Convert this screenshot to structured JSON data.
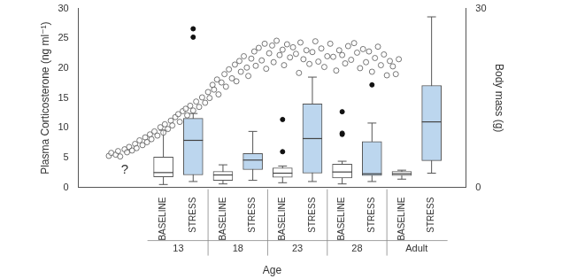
{
  "chart_data": {
    "type": "box",
    "y_label": "Plasma Corticosterone (ng ml⁻¹)",
    "y2_label": "Body mass (g)",
    "x_label": "Age",
    "xlim": [
      -1.2,
      10.5
    ],
    "xticks": [
      {
        "value": 1,
        "label": "BASELINE"
      },
      {
        "value": 2,
        "label": "STRESS"
      },
      {
        "value": 3,
        "label": "BASELINE"
      },
      {
        "value": 4,
        "label": "STRESS"
      },
      {
        "value": 5,
        "label": "BASELINE"
      },
      {
        "value": 6,
        "label": "STRESS"
      },
      {
        "value": 7,
        "label": "BASELINE"
      },
      {
        "value": 8,
        "label": "STRESS"
      },
      {
        "value": 9,
        "label": "BASELINE"
      },
      {
        "value": 10,
        "label": "STRESS"
      }
    ],
    "groups": [
      "13",
      "18",
      "23",
      "28",
      "Adult"
    ],
    "ylim": [
      0,
      30
    ],
    "yticks": [
      0,
      5,
      10,
      15,
      20,
      25,
      30
    ],
    "y2lim": [
      0,
      30
    ],
    "y2ticks": [
      0,
      30
    ],
    "grid": false,
    "boxes": {
      "x": [
        1,
        2,
        3,
        4,
        5,
        6,
        7,
        8,
        9,
        10
      ],
      "min": [
        0.5,
        1.0,
        0.6,
        1.2,
        0.8,
        1.0,
        0.6,
        1.0,
        1.4,
        2.4
      ],
      "q1": [
        1.8,
        2.1,
        1.2,
        3.0,
        1.7,
        2.4,
        1.6,
        2.0,
        2.0,
        4.5
      ],
      "median": [
        2.5,
        7.9,
        2.1,
        4.6,
        2.4,
        8.2,
        2.6,
        2.3,
        2.3,
        11.0
      ],
      "q3": [
        5.1,
        11.6,
        2.7,
        5.7,
        3.3,
        14.0,
        3.9,
        7.7,
        2.7,
        17.1
      ],
      "max": [
        9.6,
        12.4,
        3.8,
        9.4,
        3.6,
        18.5,
        4.4,
        10.8,
        2.9,
        28.6
      ],
      "outliers": [
        [],
        [
          25.2,
          26.6
        ],
        [],
        [],
        [
          6.0,
          11.4
        ],
        [],
        [
          8.9,
          9.1,
          12.7
        ],
        [
          17.2
        ],
        [],
        []
      ],
      "colors": [
        "#ffffff",
        "#bcd6ee",
        "#ffffff",
        "#bcd6ee",
        "#ffffff",
        "#bcd6ee",
        "#ffffff",
        "#bcd6ee",
        "#ffffff",
        "#bcd6ee"
      ],
      "marker": "circle"
    },
    "points": {
      "type": "scatter",
      "axis": "y2",
      "marker": "circle",
      "color": "#555555",
      "x": [
        -0.83,
        -0.75,
        -0.6,
        -0.52,
        -0.45,
        -0.3,
        -0.22,
        -0.15,
        -0.05,
        0.05,
        0.1,
        0.2,
        0.3,
        0.39,
        0.45,
        0.55,
        0.6,
        0.7,
        0.8,
        0.9,
        1.0,
        1.05,
        1.15,
        1.25,
        1.3,
        1.4,
        1.5,
        1.55,
        1.65,
        1.75,
        1.8,
        1.9,
        2.0,
        2.1,
        2.2,
        2.3,
        2.4,
        2.5,
        2.55,
        2.65,
        2.7,
        2.8,
        2.85,
        2.95,
        3.05,
        3.1,
        3.2,
        3.3,
        3.4,
        3.45,
        3.55,
        3.6,
        3.7,
        3.8,
        3.85,
        3.95,
        4.05,
        4.1,
        4.2,
        4.3,
        4.4,
        4.45,
        4.55,
        4.65,
        4.7,
        4.8,
        4.9,
        5.0,
        5.05,
        5.15,
        5.25,
        5.35,
        5.45,
        5.55,
        5.6,
        5.7,
        5.8,
        5.9,
        6.0,
        6.1,
        6.2,
        6.3,
        6.4,
        6.5,
        6.6,
        6.7,
        6.8,
        6.9,
        7.0,
        7.1,
        7.2,
        7.3,
        7.4,
        7.5,
        7.6,
        7.7,
        7.8,
        7.9,
        8.0,
        8.1,
        8.2,
        8.3,
        8.4,
        8.5,
        8.6,
        8.7,
        8.8,
        8.9
      ],
      "values": [
        5.3,
        5.8,
        5.5,
        6.1,
        5.2,
        6.4,
        5.9,
        6.8,
        6.2,
        7.3,
        6.6,
        7.9,
        7.1,
        8.4,
        7.6,
        8.9,
        8.1,
        9.4,
        8.7,
        10.1,
        9.2,
        10.6,
        9.8,
        11.2,
        10.4,
        11.8,
        12.3,
        11.0,
        12.8,
        13.2,
        12.1,
        13.7,
        12.9,
        14.4,
        13.5,
        15.1,
        14.2,
        16.0,
        15.0,
        17.2,
        16.4,
        18.1,
        15.6,
        17.6,
        19.0,
        16.9,
        19.8,
        18.3,
        20.6,
        17.8,
        21.2,
        19.4,
        22.0,
        20.1,
        18.7,
        21.6,
        22.8,
        20.4,
        23.4,
        21.3,
        24.1,
        19.9,
        22.5,
        23.8,
        21.0,
        24.6,
        22.2,
        23.1,
        20.5,
        24.0,
        21.8,
        23.5,
        22.4,
        19.2,
        24.3,
        21.5,
        23.0,
        20.7,
        22.7,
        24.5,
        21.1,
        23.3,
        20.2,
        22.0,
        24.1,
        21.9,
        19.6,
        23.0,
        22.2,
        20.8,
        23.7,
        21.4,
        24.2,
        22.6,
        20.0,
        23.2,
        21.0,
        22.8,
        19.4,
        21.7,
        23.6,
        20.5,
        22.3,
        18.8,
        21.2,
        20.3,
        19.0,
        21.5
      ]
    },
    "annotations": [
      {
        "text": "?",
        "x": -0.3,
        "y": 3,
        "axis": "y2"
      }
    ]
  }
}
